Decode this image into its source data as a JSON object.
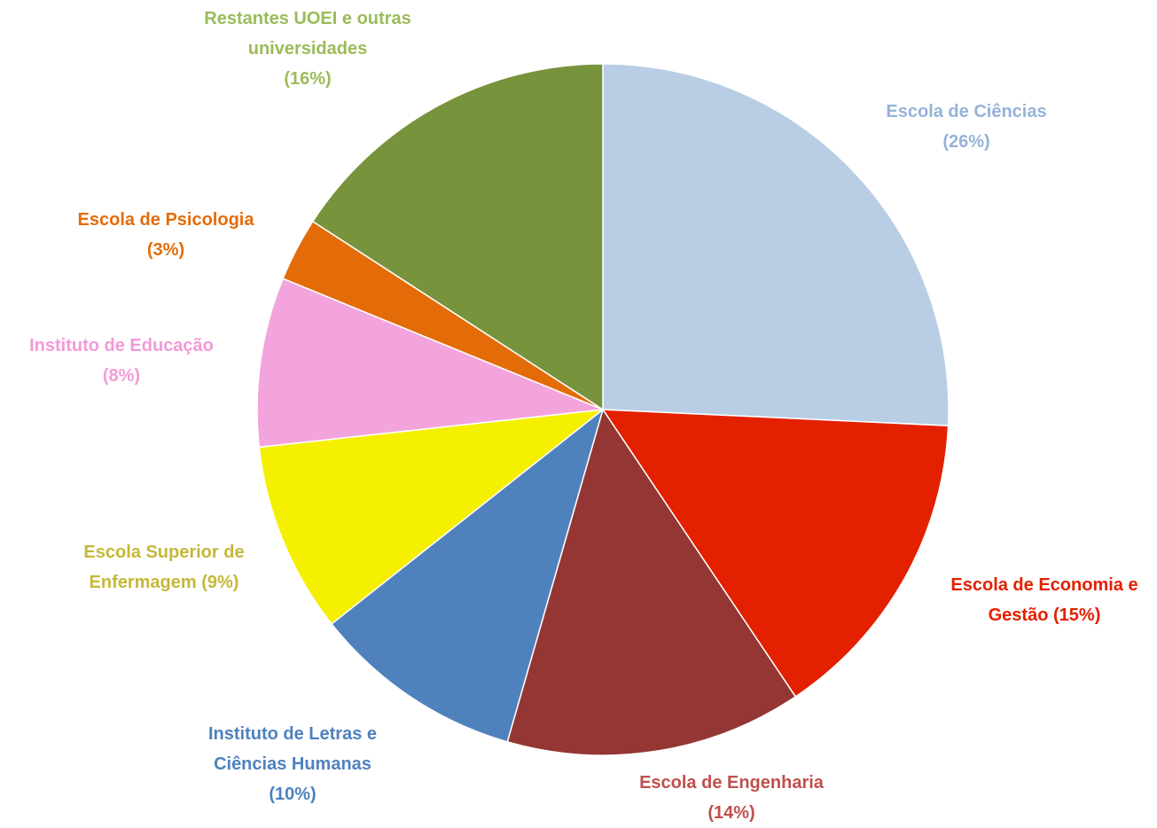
{
  "chart_data": {
    "type": "pie",
    "categories": [
      "Escola de Ciências",
      "Escola de Economia e Gestão",
      "Escola de Engenharia",
      "Instituto de Letras e Ciências Humanas",
      "Escola Superior de Enfermagem",
      "Instituto de Educação",
      "Escola de Psicologia",
      "Restantes UOEI e outras universidades"
    ],
    "values": [
      26,
      15,
      14,
      10,
      9,
      8,
      3,
      16
    ],
    "value_labels": [
      "(26%)",
      "(15%)",
      "(14%)",
      "(10%)",
      "(9%)",
      "(8%)",
      "(3%)",
      "(16%)"
    ],
    "colors": [
      "#b9cde5",
      "#e32000",
      "#943634",
      "#4f81bd",
      "#f5f000",
      "#f4a4dc",
      "#e36c09",
      "#77933c"
    ],
    "label_colors": [
      "#95b3d7",
      "#e32000",
      "#c0504d",
      "#4f81bd",
      "#c4b83a",
      "#f29ad8",
      "#e36c09",
      "#9bbb59"
    ]
  }
}
